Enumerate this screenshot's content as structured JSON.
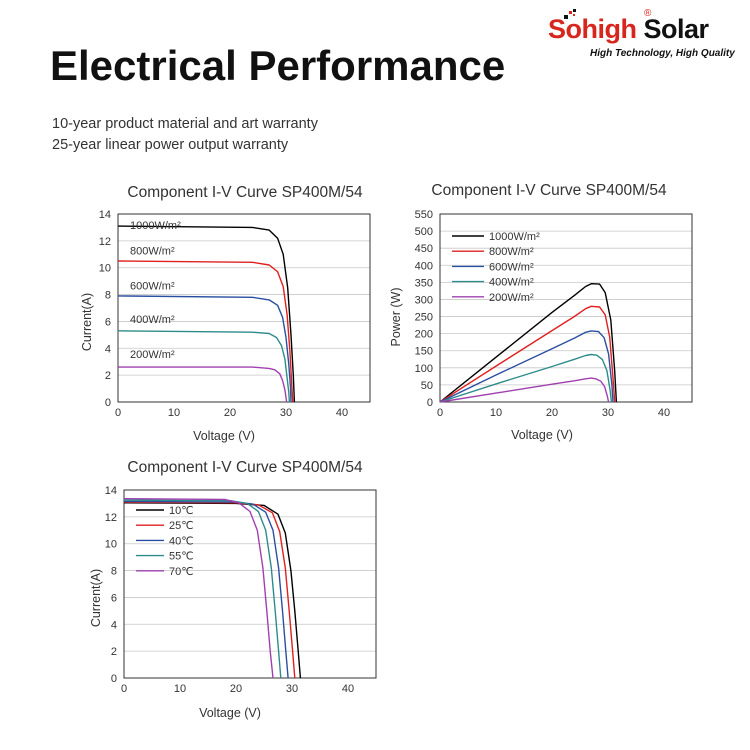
{
  "brand": {
    "name_red": "Sohigh",
    "name_black": " Solar",
    "registered": "®",
    "tagline": "High Technology, High Quality",
    "color_red": "#d7261e"
  },
  "page_title": "Electrical Performance",
  "warranty": {
    "line1": "10-year product material and art warranty",
    "line2": "25-year linear power output warranty"
  },
  "chart_data": [
    {
      "type": "line",
      "title": "Component I-V Curve SP400M/54",
      "xlabel": "Voltage (V)",
      "ylabel": "Current(A)",
      "xlim": [
        0,
        45
      ],
      "ylim": [
        0,
        14
      ],
      "xticks": [
        0,
        10,
        20,
        30,
        40
      ],
      "yticks": [
        0,
        2,
        4,
        6,
        8,
        10,
        12,
        14
      ],
      "grid": true,
      "series": [
        {
          "name": "1000W/m²",
          "color": "#000000",
          "x": [
            0,
            24,
            27,
            28.5,
            29.5,
            30.3,
            30.9,
            31.3,
            31.5
          ],
          "y": [
            13.1,
            13.0,
            12.8,
            12.2,
            11.0,
            8.5,
            5.0,
            2.0,
            0
          ]
        },
        {
          "name": "800W/m²",
          "color": "#e02020",
          "x": [
            0,
            24,
            27,
            28.5,
            29.5,
            30.2,
            30.7,
            31.0,
            31.2
          ],
          "y": [
            10.5,
            10.4,
            10.2,
            9.7,
            8.6,
            6.5,
            3.8,
            1.5,
            0
          ]
        },
        {
          "name": "600W/m²",
          "color": "#2a4fa0",
          "x": [
            0,
            24,
            27,
            28.5,
            29.4,
            30.0,
            30.5,
            30.8,
            30.9
          ],
          "y": [
            7.9,
            7.8,
            7.6,
            7.2,
            6.3,
            4.8,
            2.8,
            1.1,
            0
          ]
        },
        {
          "name": "400W/m²",
          "color": "#2e8b8b",
          "x": [
            0,
            24,
            27,
            28.3,
            29.2,
            29.8,
            30.2,
            30.5,
            30.6
          ],
          "y": [
            5.3,
            5.2,
            5.1,
            4.8,
            4.2,
            3.2,
            1.8,
            0.7,
            0
          ]
        },
        {
          "name": "200W/m²",
          "color": "#a040b0",
          "x": [
            0,
            24,
            27,
            28.0,
            28.9,
            29.4,
            29.8,
            30.0,
            30.1
          ],
          "y": [
            2.6,
            2.6,
            2.5,
            2.4,
            2.1,
            1.6,
            0.9,
            0.35,
            0
          ]
        }
      ]
    },
    {
      "type": "line",
      "title": "Component I-V Curve SP400M/54",
      "xlabel": "Voltage (V)",
      "ylabel": "Power (W)",
      "xlim": [
        0,
        45
      ],
      "ylim": [
        0,
        550
      ],
      "xticks": [
        0,
        10,
        20,
        30,
        40
      ],
      "yticks": [
        0,
        50,
        100,
        150,
        200,
        250,
        300,
        350,
        400,
        450,
        500,
        550
      ],
      "grid": true,
      "legend": "top-left",
      "series": [
        {
          "name": "1000W/m²",
          "color": "#000000",
          "x": [
            0,
            10,
            20,
            24,
            26,
            27,
            28.5,
            29.5,
            30.5,
            31.2,
            31.5
          ],
          "y": [
            0,
            131,
            262,
            312,
            338,
            346,
            345,
            320,
            240,
            90,
            0
          ]
        },
        {
          "name": "800W/m²",
          "color": "#e02020",
          "x": [
            0,
            10,
            20,
            24,
            26,
            27,
            28.5,
            29.5,
            30.3,
            30.9,
            31.2
          ],
          "y": [
            0,
            105,
            209,
            250,
            273,
            280,
            278,
            255,
            190,
            70,
            0
          ]
        },
        {
          "name": "600W/m²",
          "color": "#2a4fa0",
          "x": [
            0,
            10,
            20,
            24,
            26,
            27,
            28.3,
            29.3,
            30.1,
            30.7,
            30.9
          ],
          "y": [
            0,
            79,
            156,
            187,
            204,
            208,
            206,
            188,
            140,
            50,
            0
          ]
        },
        {
          "name": "400W/m²",
          "color": "#2e8b8b",
          "x": [
            0,
            10,
            20,
            24,
            26,
            27,
            28.0,
            29.0,
            29.8,
            30.4,
            30.6
          ],
          "y": [
            0,
            53,
            104,
            125,
            136,
            139,
            137,
            124,
            92,
            33,
            0
          ]
        },
        {
          "name": "200W/m²",
          "color": "#a040b0",
          "x": [
            0,
            10,
            20,
            24,
            26,
            27,
            27.8,
            28.7,
            29.4,
            29.9,
            30.1
          ],
          "y": [
            0,
            26,
            52,
            62,
            68,
            70,
            68,
            61,
            45,
            16,
            0
          ]
        }
      ]
    },
    {
      "type": "line",
      "title": "Component I-V Curve SP400M/54",
      "xlabel": "Voltage (V)",
      "ylabel": "Current(A)",
      "xlim": [
        0,
        45
      ],
      "ylim": [
        0,
        14
      ],
      "xticks": [
        0,
        10,
        20,
        30,
        40
      ],
      "yticks": [
        0,
        2,
        4,
        6,
        8,
        10,
        12,
        14
      ],
      "grid": true,
      "legend": "top-left",
      "series": [
        {
          "name": "10℃",
          "color": "#000000",
          "x": [
            0,
            20,
            25,
            27.5,
            28.8,
            29.8,
            30.5,
            31.1,
            31.5
          ],
          "y": [
            13.05,
            13.0,
            12.85,
            12.2,
            10.8,
            8.0,
            5.0,
            2.0,
            0
          ]
        },
        {
          "name": "25℃",
          "color": "#e02020",
          "x": [
            0,
            20,
            24,
            26.5,
            27.8,
            28.8,
            29.5,
            30.1,
            30.5
          ],
          "y": [
            13.1,
            13.05,
            12.9,
            12.3,
            10.9,
            8.2,
            5.0,
            2.0,
            0
          ]
        },
        {
          "name": "40℃",
          "color": "#2a4fa0",
          "x": [
            0,
            20,
            23,
            25.3,
            26.6,
            27.6,
            28.3,
            28.9,
            29.3
          ],
          "y": [
            13.15,
            13.1,
            12.95,
            12.35,
            11.0,
            8.2,
            5.0,
            2.0,
            0
          ]
        },
        {
          "name": "55℃",
          "color": "#2e8b8b",
          "x": [
            0,
            19,
            22,
            24.0,
            25.3,
            26.3,
            27.0,
            27.6,
            28.0
          ],
          "y": [
            13.25,
            13.2,
            13.0,
            12.4,
            11.0,
            8.2,
            5.0,
            2.0,
            0
          ]
        },
        {
          "name": "70℃",
          "color": "#a040b0",
          "x": [
            0,
            18,
            20.5,
            22.5,
            23.8,
            24.8,
            25.5,
            26.1,
            26.6
          ],
          "y": [
            13.35,
            13.3,
            13.05,
            12.4,
            11.0,
            8.2,
            5.0,
            2.0,
            0
          ]
        }
      ]
    }
  ]
}
